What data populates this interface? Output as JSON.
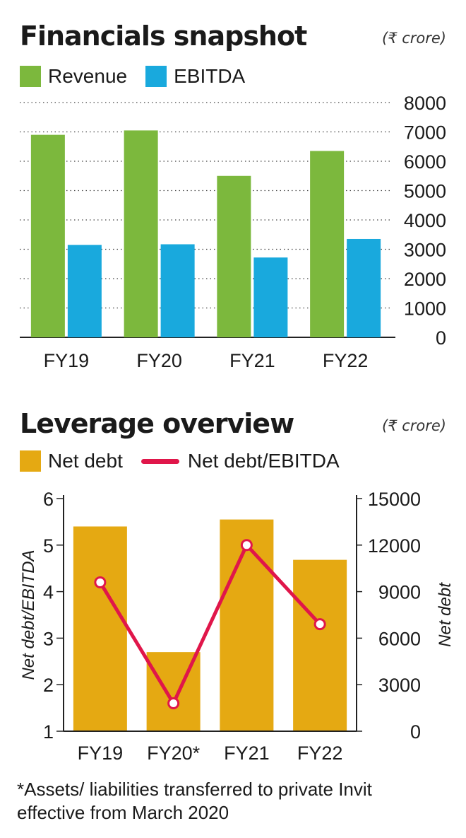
{
  "colors": {
    "revenue": "#7cb83d",
    "ebitda": "#19a9dd",
    "net_debt": "#e5a912",
    "ratio_line": "#e0164a",
    "grid": "#444444"
  },
  "chart1": {
    "title": "Financials snapshot",
    "unit": "(₹ crore)",
    "legend": [
      "Revenue",
      "EBITDA"
    ]
  },
  "chart2": {
    "title": "Leverage overview",
    "unit": "(₹ crore)",
    "legend": [
      "Net debt",
      "Net debt/EBITDA"
    ],
    "y_left_label": "Net debt/EBITDA",
    "y_right_label": "Net debt"
  },
  "footnote": "*Assets/ liabilities  transferred to private Invit effective from March 2020",
  "chart_data": [
    {
      "type": "bar",
      "title": "Financials snapshot",
      "unit": "(₹ crore)",
      "categories": [
        "FY19",
        "FY20",
        "FY21",
        "FY22"
      ],
      "series": [
        {
          "name": "Revenue",
          "values": [
            6900,
            7050,
            5500,
            6350
          ]
        },
        {
          "name": "EBITDA",
          "values": [
            3150,
            3170,
            2720,
            3350
          ]
        }
      ],
      "ylim": [
        0,
        8000
      ],
      "yticks": [
        0,
        1000,
        2000,
        3000,
        4000,
        5000,
        6000,
        7000,
        8000
      ],
      "grid": true,
      "legend": "top-left"
    },
    {
      "type": "bar",
      "title": "Leverage overview",
      "unit": "(₹ crore)",
      "categories": [
        "FY19",
        "FY20*",
        "FY21",
        "FY22"
      ],
      "series": [
        {
          "name": "Net debt",
          "type": "bar",
          "axis": "right",
          "values": [
            13200,
            5100,
            13650,
            11050
          ]
        },
        {
          "name": "Net debt/EBITDA",
          "type": "line",
          "axis": "left",
          "values": [
            4.2,
            1.6,
            5.0,
            3.3
          ]
        }
      ],
      "ylabel_left": "Net debt/EBITDA",
      "ylim_left": [
        1,
        6
      ],
      "yticks_left": [
        1,
        2,
        3,
        4,
        5,
        6
      ],
      "ylabel_right": "Net debt",
      "ylim_right": [
        0,
        15000
      ],
      "yticks_right": [
        0,
        3000,
        6000,
        9000,
        12000,
        15000
      ],
      "grid": false,
      "legend": "top-left"
    }
  ]
}
